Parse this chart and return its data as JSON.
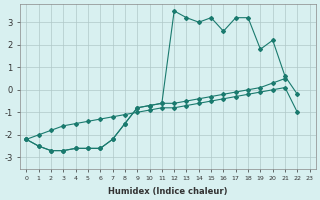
{
  "xlabel": "Humidex (Indice chaleur)",
  "x": [
    0,
    1,
    2,
    3,
    4,
    5,
    6,
    7,
    8,
    9,
    10,
    11,
    12,
    13,
    14,
    15,
    16,
    17,
    18,
    19,
    20,
    21,
    22,
    23
  ],
  "line1": [
    -2.2,
    -2.5,
    -2.7,
    -2.7,
    -2.6,
    -2.6,
    -2.6,
    -2.2,
    -1.5,
    -0.8,
    -0.7,
    -0.6,
    3.5,
    3.2,
    3.0,
    3.2,
    2.6,
    3.2,
    3.2,
    1.8,
    2.2,
    0.6,
    -0.2,
    null
  ],
  "line2": [
    -2.2,
    -2.5,
    -2.7,
    -2.7,
    -2.6,
    -2.6,
    -2.6,
    -2.2,
    -1.5,
    -0.8,
    -0.7,
    -0.6,
    -0.6,
    -0.5,
    -0.4,
    -0.3,
    -0.2,
    -0.1,
    0.0,
    0.1,
    0.3,
    0.5,
    null,
    null
  ],
  "line3": [
    -2.2,
    -2.0,
    -1.8,
    -1.6,
    -1.5,
    -1.4,
    -1.3,
    -1.2,
    -1.1,
    -1.0,
    -0.9,
    -0.8,
    -0.8,
    -0.7,
    -0.6,
    -0.5,
    -0.4,
    -0.3,
    -0.2,
    -0.1,
    0.0,
    0.1,
    -1.0,
    null
  ],
  "color": "#1a7a6e",
  "bg_color": "#d8f0f0",
  "grid_color": "#b0c8c8",
  "ylim": [
    -3.5,
    3.8
  ],
  "yticks": [
    -3,
    -2,
    -1,
    0,
    1,
    2,
    3
  ],
  "xlim": [
    -0.5,
    23.5
  ],
  "xticks": [
    0,
    1,
    2,
    3,
    4,
    5,
    6,
    7,
    8,
    9,
    10,
    11,
    12,
    13,
    14,
    15,
    16,
    17,
    18,
    19,
    20,
    21,
    22,
    23
  ]
}
